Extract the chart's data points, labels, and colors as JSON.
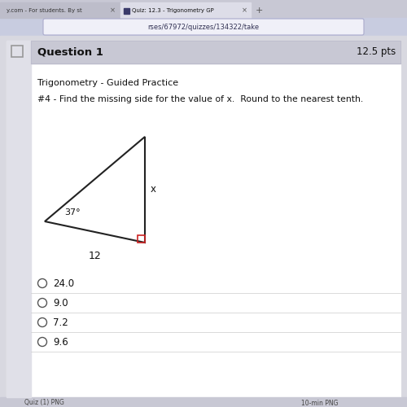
{
  "bg_color": "#d8d8e0",
  "panel_color": "#f5f5f5",
  "white_panel_color": "#ffffff",
  "title_bar_text": "Question 1",
  "pts_text": "12.5 pts",
  "subtitle": "Trigonometry - Guided Practice",
  "problem": "#4 - Find the missing side for the value of x.  Round to the nearest tenth.",
  "angle_label": "37°",
  "base_label": "12",
  "side_label": "x",
  "choices": [
    "24.0",
    "9.0",
    "7.2",
    "9.6"
  ],
  "right_angle_color": "#cc2222",
  "triangle_color": "#222222",
  "text_color": "#111111",
  "gray_text_color": "#555555",
  "tab_bg": "#c8c8d4",
  "tab1_color": "#bdbdca",
  "tab2_color": "#3a3a6a",
  "addr_bar_color": "#c8cce0",
  "addr_box_color": "#f0f0f8",
  "question_bar_color": "#c8c8d4",
  "left_stripe_color": "#e0e0e8",
  "separator_color": "#cccccc",
  "bottom_bar_color": "#c8c8d4",
  "tab_text1": "y.com - For students. By st",
  "tab_text2": "Quiz: 12.3 - Trigonometry GP",
  "url_bar_text": "rses/67972/quizzes/134322/take"
}
